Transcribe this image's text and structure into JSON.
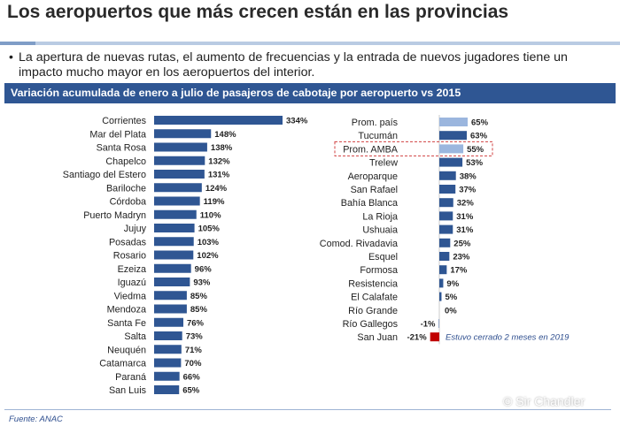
{
  "header": {
    "title": "Los aeropuertos que más crecen están en las provincias",
    "bullet": "La apertura de nuevas rutas, el aumento de frecuencias y la entrada de nuevos jugadores tiene un impacto mucho mayor en los aeropuertos del interior."
  },
  "banner": {
    "text": "Variación acumulada de enero a julio de pasajeros de cabotaje por aeropuerto vs 2015"
  },
  "footer": {
    "source": "Fuente: ANAC",
    "watermark": "© Sir Chandler"
  },
  "colors": {
    "bar": "#2f5693",
    "highlight": "#9bb6de",
    "negative": "#c00000",
    "banner": "#2f5693",
    "box": "#d04040"
  },
  "chart_data": [
    {
      "type": "bar",
      "orientation": "horizontal",
      "value_suffix": "%",
      "categories": [
        "Corrientes",
        "Mar del Plata",
        "Santa Rosa",
        "Chapelco",
        "Santiago del Estero",
        "Bariloche",
        "Córdoba",
        "Puerto Madryn",
        "Jujuy",
        "Posadas",
        "Rosario",
        "Ezeiza",
        "Iguazú",
        "Viedma",
        "Mendoza",
        "Santa Fe",
        "Salta",
        "Neuquén",
        "Catamarca",
        "Paraná",
        "San Luis"
      ],
      "values": [
        334,
        148,
        138,
        132,
        131,
        124,
        119,
        110,
        105,
        103,
        102,
        96,
        93,
        85,
        85,
        76,
        73,
        71,
        70,
        66,
        65
      ]
    },
    {
      "type": "bar",
      "orientation": "horizontal",
      "value_suffix": "%",
      "categories": [
        "Prom. país",
        "Tucumán",
        "Prom. AMBA",
        "Trelew",
        "Aeroparque",
        "San Rafael",
        "Bahía Blanca",
        "La Rioja",
        "Ushuaia",
        "Comod. Rivadavia",
        "Esquel",
        "Formosa",
        "Resistencia",
        "El Calafate",
        "Río Grande",
        "Río Gallegos",
        "San Juan"
      ],
      "values": [
        65,
        63,
        55,
        53,
        38,
        37,
        32,
        31,
        31,
        25,
        23,
        17,
        9,
        5,
        0,
        -1,
        -21
      ],
      "highlighted": [
        "Prom. país",
        "Prom. AMBA"
      ],
      "boxed": [
        "Prom. AMBA"
      ],
      "annotations": [
        {
          "category": "San Juan",
          "text": "Estuvo cerrado 2 meses en 2019"
        }
      ]
    }
  ]
}
